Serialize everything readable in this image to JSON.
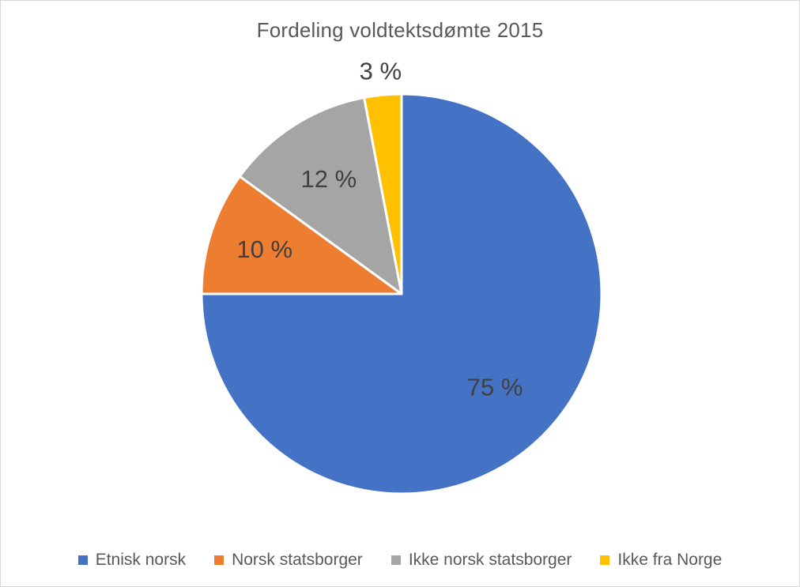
{
  "chart_data": {
    "type": "pie",
    "title": "Fordeling voldtektsdømte 2015",
    "categories": [
      "Etnisk norsk",
      "Norsk statsborger",
      "Ikke norsk statsborger",
      "Ikke fra Norge"
    ],
    "values": [
      75,
      10,
      12,
      3
    ],
    "data_labels": [
      "75 %",
      "10 %",
      "12 %",
      "3 %"
    ],
    "colors": [
      "#4472C4",
      "#ED7D31",
      "#A5A5A5",
      "#FFC000"
    ],
    "start_angle": "12 o'clock",
    "direction": "clockwise",
    "legend_position": "bottom"
  }
}
